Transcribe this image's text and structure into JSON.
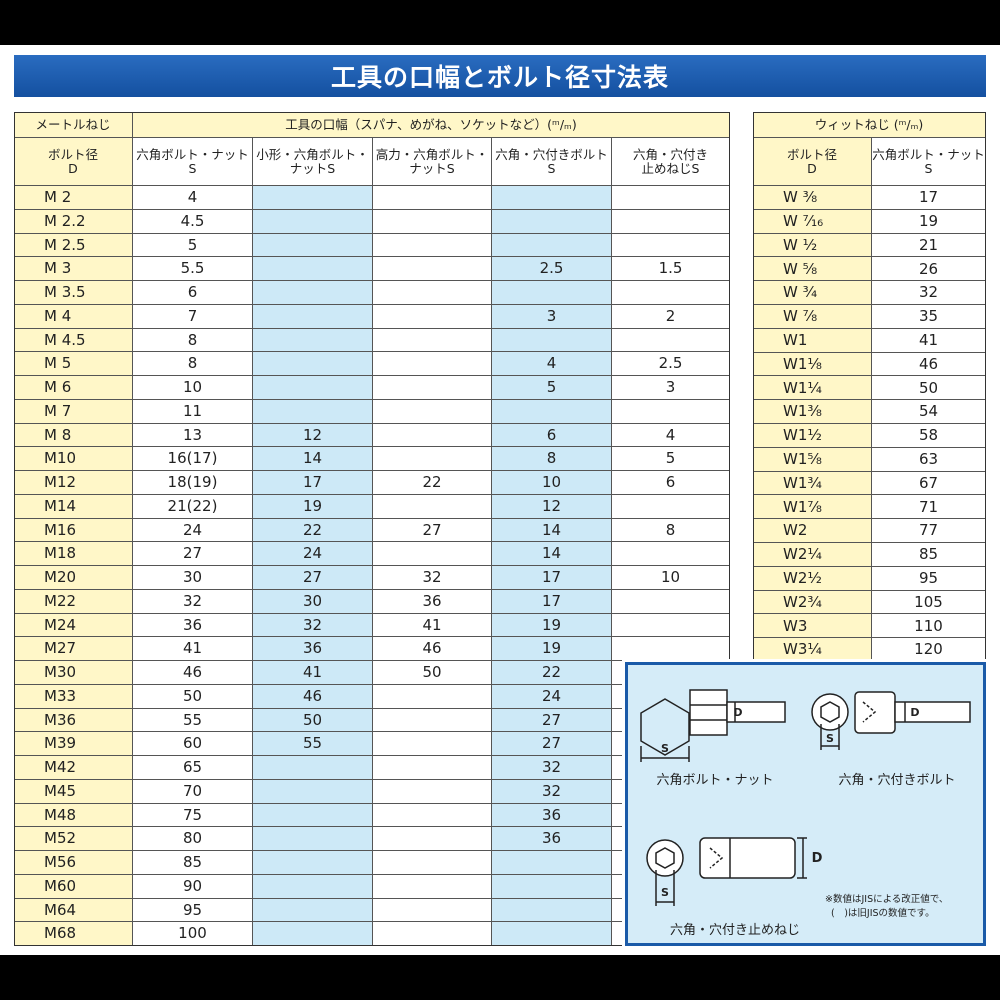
{
  "header": {
    "title": "工具の口幅とボルト径寸法表"
  },
  "main_table": {
    "group_headers": [
      "メートルねじ",
      "工具の口幅（スパナ、めがね、ソケットなど）(ᵐ/ₘ)"
    ],
    "columns": [
      "ボルト径\nD",
      "六角ボルト・ナット\nS",
      "小形・六角ボルト・\nナットS",
      "高力・六角ボルト・\nナットS",
      "六角・穴付きボルト\nS",
      "六角・穴付き\n止めねじS"
    ],
    "rows": [
      [
        "M 2",
        "4",
        null,
        null,
        null,
        null
      ],
      [
        "M 2.2",
        "4.5",
        null,
        null,
        null,
        null
      ],
      [
        "M 2.5",
        "5",
        null,
        null,
        null,
        null
      ],
      [
        "M 3",
        "5.5",
        null,
        null,
        "2.5",
        "1.5"
      ],
      [
        "M 3.5",
        "6",
        null,
        null,
        null,
        null
      ],
      [
        "M 4",
        "7",
        null,
        null,
        "3",
        "2"
      ],
      [
        "M 4.5",
        "8",
        null,
        null,
        null,
        null
      ],
      [
        "M 5",
        "8",
        null,
        null,
        "4",
        "2.5"
      ],
      [
        "M 6",
        "10",
        null,
        null,
        "5",
        "3"
      ],
      [
        "M 7",
        "11",
        null,
        null,
        null,
        null
      ],
      [
        "M 8",
        "13",
        "12",
        null,
        "6",
        "4"
      ],
      [
        "M10",
        "16(17)",
        "14",
        null,
        "8",
        "5"
      ],
      [
        "M12",
        "18(19)",
        "17",
        "22",
        "10",
        "6"
      ],
      [
        "M14",
        "21(22)",
        "19",
        null,
        "12",
        null
      ],
      [
        "M16",
        "24",
        "22",
        "27",
        "14",
        "8"
      ],
      [
        "M18",
        "27",
        "24",
        null,
        "14",
        null
      ],
      [
        "M20",
        "30",
        "27",
        "32",
        "17",
        "10"
      ],
      [
        "M22",
        "32",
        "30",
        "36",
        "17",
        null
      ],
      [
        "M24",
        "36",
        "32",
        "41",
        "19",
        null
      ],
      [
        "M27",
        "41",
        "36",
        "46",
        "19",
        null
      ],
      [
        "M30",
        "46",
        "41",
        "50",
        "22",
        null
      ],
      [
        "M33",
        "50",
        "46",
        null,
        "24",
        null
      ],
      [
        "M36",
        "55",
        "50",
        null,
        "27",
        null
      ],
      [
        "M39",
        "60",
        "55",
        null,
        "27",
        null
      ],
      [
        "M42",
        "65",
        null,
        null,
        "32",
        null
      ],
      [
        "M45",
        "70",
        null,
        null,
        "32",
        null
      ],
      [
        "M48",
        "75",
        null,
        null,
        "36",
        null
      ],
      [
        "M52",
        "80",
        null,
        null,
        "36",
        null
      ],
      [
        "M56",
        "85",
        null,
        null,
        null,
        null
      ],
      [
        "M60",
        "90",
        null,
        null,
        null,
        null
      ],
      [
        "M64",
        "95",
        null,
        null,
        null,
        null
      ],
      [
        "M68",
        "100",
        null,
        null,
        null,
        null
      ]
    ]
  },
  "whitworth_table": {
    "group_header": "ウィットねじ (ᵐ/ₘ)",
    "columns": [
      "ボルト径\nD",
      "六角ボルト・ナット\nS"
    ],
    "rows": [
      [
        "W ³⁄₈",
        "17"
      ],
      [
        "W ⁷⁄₁₆",
        "19"
      ],
      [
        "W ¹⁄₂",
        "21"
      ],
      [
        "W ⁵⁄₈",
        "26"
      ],
      [
        "W ³⁄₄",
        "32"
      ],
      [
        "W ⁷⁄₈",
        "35"
      ],
      [
        "W1",
        "41"
      ],
      [
        "W1¹⁄₈",
        "46"
      ],
      [
        "W1¹⁄₄",
        "50"
      ],
      [
        "W1³⁄₈",
        "54"
      ],
      [
        "W1¹⁄₂",
        "58"
      ],
      [
        "W1⁵⁄₈",
        "63"
      ],
      [
        "W1³⁄₄",
        "67"
      ],
      [
        "W1⁷⁄₈",
        "71"
      ],
      [
        "W2",
        "77"
      ],
      [
        "W2¹⁄₄",
        "85"
      ],
      [
        "W2¹⁄₂",
        "95"
      ],
      [
        "W2³⁄₄",
        "105"
      ],
      [
        "W3",
        "110"
      ],
      [
        "W3¹⁄₄",
        "120"
      ]
    ]
  },
  "diagram": {
    "labels": [
      "六角ボルト・ナット",
      "六角・穴付きボルト",
      "六角・穴付き止めねじ"
    ],
    "symbols": {
      "s": "S",
      "d": "D"
    },
    "notes": [
      "※数値はJISによる改正値で、",
      "(　)は旧JISの数値です。"
    ]
  }
}
